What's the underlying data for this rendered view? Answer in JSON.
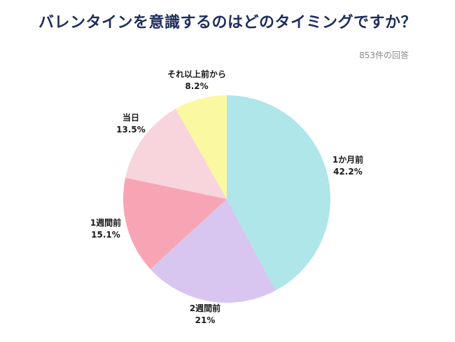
{
  "title": "バレンタインを意識するのはどのタイミングですか？",
  "note": "853件の回答",
  "chart_data": {
    "type": "pie",
    "slices": [
      {
        "label": "1か月前",
        "value": 42.2,
        "display": "42.2%",
        "color": "#aee6ea"
      },
      {
        "label": "2週間前",
        "value": 21.0,
        "display": "21%",
        "color": "#d9c6f0"
      },
      {
        "label": "1週間前",
        "value": 15.1,
        "display": "15.1%",
        "color": "#f7a5b4"
      },
      {
        "label": "当日",
        "value": 13.5,
        "display": "13.5%",
        "color": "#f8d5dd"
      },
      {
        "label": "それ以上前から",
        "value": 8.2,
        "display": "8.2%",
        "color": "#fbf8a2"
      }
    ]
  }
}
